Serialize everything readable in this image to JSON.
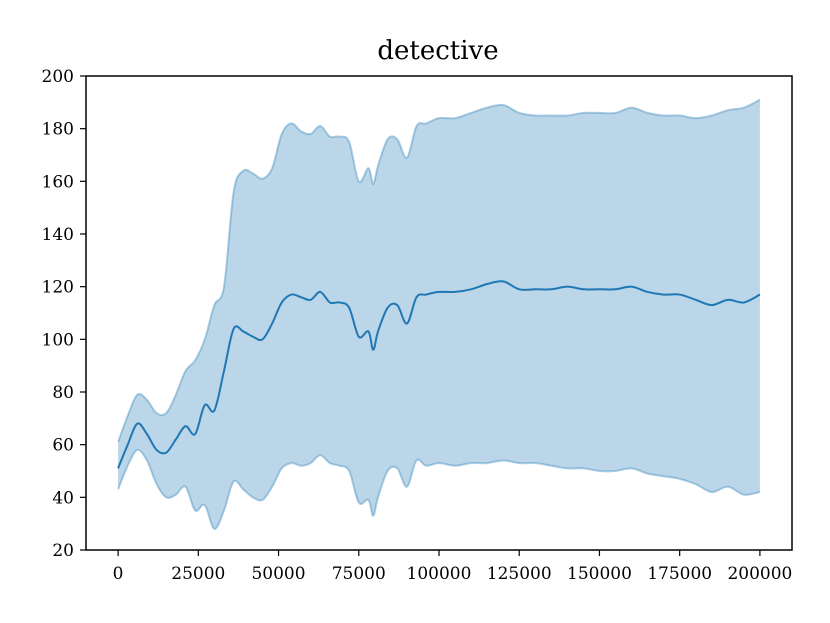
{
  "chart_data": {
    "type": "area",
    "title": "detective",
    "xlabel": "",
    "ylabel": "",
    "xlim": [
      -10000,
      210000
    ],
    "ylim": [
      20,
      200
    ],
    "xticks": [
      0,
      25000,
      50000,
      75000,
      100000,
      125000,
      150000,
      175000,
      200000
    ],
    "yticks": [
      20,
      40,
      60,
      80,
      100,
      120,
      140,
      160,
      180,
      200
    ],
    "grid": false,
    "colors": {
      "line": "#1f77b4",
      "band_fill": "#1f77b4",
      "band_edge": "#1f77b4"
    },
    "x": [
      0,
      3000,
      6000,
      9000,
      12000,
      15000,
      18000,
      21000,
      24000,
      27000,
      30000,
      33000,
      36000,
      39000,
      42000,
      45000,
      48000,
      51000,
      54000,
      57000,
      60000,
      63000,
      66000,
      69000,
      72000,
      75000,
      78000,
      79500,
      81000,
      84000,
      87000,
      90000,
      93000,
      96000,
      100000,
      105000,
      110000,
      115000,
      120000,
      125000,
      130000,
      135000,
      140000,
      145000,
      150000,
      155000,
      160000,
      165000,
      170000,
      175000,
      180000,
      185000,
      190000,
      195000,
      200000
    ],
    "series": [
      {
        "values": [
          51,
          60,
          68,
          64,
          58,
          57,
          62,
          67,
          64,
          75,
          73,
          88,
          104,
          103,
          101,
          100,
          106,
          114,
          117,
          116,
          115,
          118,
          114,
          114,
          112,
          101,
          103,
          96,
          103,
          112,
          113,
          106,
          116,
          117,
          118,
          118,
          119,
          121,
          122,
          119,
          119,
          119,
          120,
          119,
          119,
          119,
          120,
          118,
          117,
          117,
          115,
          113,
          115,
          114,
          117
        ]
      }
    ],
    "band": {
      "upper": [
        61,
        71,
        79,
        77,
        72,
        72,
        79,
        88,
        92,
        100,
        113,
        120,
        156,
        164,
        163,
        161,
        165,
        178,
        182,
        179,
        178,
        181,
        177,
        177,
        175,
        160,
        165,
        159,
        166,
        176,
        176,
        169,
        181,
        182,
        184,
        184,
        186,
        188,
        189,
        186,
        185,
        185,
        185,
        186,
        186,
        186,
        188,
        186,
        185,
        185,
        184,
        185,
        187,
        188,
        191
      ],
      "lower": [
        43,
        52,
        58,
        54,
        45,
        40,
        41,
        44,
        35,
        37,
        28,
        35,
        46,
        43,
        40,
        39,
        44,
        51,
        53,
        52,
        53,
        56,
        53,
        52,
        50,
        38,
        39,
        33,
        40,
        50,
        51,
        44,
        54,
        52,
        53,
        52,
        53,
        53,
        54,
        53,
        53,
        52,
        51,
        51,
        50,
        50,
        51,
        49,
        48,
        47,
        45,
        42,
        44,
        41,
        42
      ]
    }
  }
}
